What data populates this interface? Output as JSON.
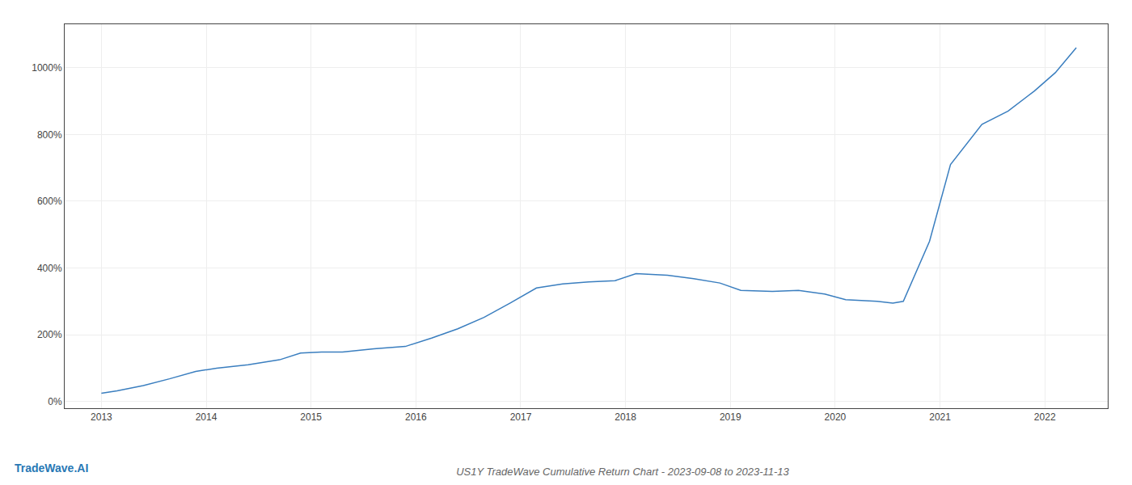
{
  "chart_data": {
    "type": "line",
    "title": "US1Y TradeWave Cumulative Return Chart - 2023-09-08 to 2023-11-13",
    "annotations": [
      "TradeWave.AI"
    ],
    "x": [
      2013.0,
      2013.15,
      2013.4,
      2013.65,
      2013.9,
      2014.1,
      2014.4,
      2014.7,
      2014.9,
      2015.1,
      2015.3,
      2015.6,
      2015.9,
      2016.15,
      2016.4,
      2016.65,
      2016.9,
      2017.15,
      2017.4,
      2017.65,
      2017.9,
      2018.1,
      2018.4,
      2018.65,
      2018.9,
      2019.1,
      2019.4,
      2019.65,
      2019.9,
      2020.1,
      2020.4,
      2020.55,
      2020.65,
      2020.9,
      2021.1,
      2021.4,
      2021.65,
      2021.9,
      2022.1,
      2022.3
    ],
    "values": [
      25,
      32,
      48,
      68,
      90,
      100,
      110,
      125,
      145,
      148,
      148,
      158,
      165,
      190,
      218,
      252,
      295,
      340,
      352,
      358,
      362,
      383,
      378,
      368,
      355,
      333,
      330,
      333,
      322,
      305,
      300,
      295,
      300,
      480,
      710,
      830,
      870,
      930,
      985,
      1060
    ],
    "color": "#3a7ebf",
    "xlim": [
      2012.65,
      2022.6
    ],
    "ylim": [
      -20,
      1130
    ],
    "xticks": [
      2013,
      2014,
      2015,
      2016,
      2017,
      2018,
      2019,
      2020,
      2021,
      2022
    ],
    "yticks": [
      {
        "value": 0,
        "label": "0%"
      },
      {
        "value": 200,
        "label": "200%"
      },
      {
        "value": 400,
        "label": "400%"
      },
      {
        "value": 600,
        "label": "600%"
      },
      {
        "value": 800,
        "label": "800%"
      },
      {
        "value": 1000,
        "label": "1000%"
      }
    ],
    "grid": true
  }
}
